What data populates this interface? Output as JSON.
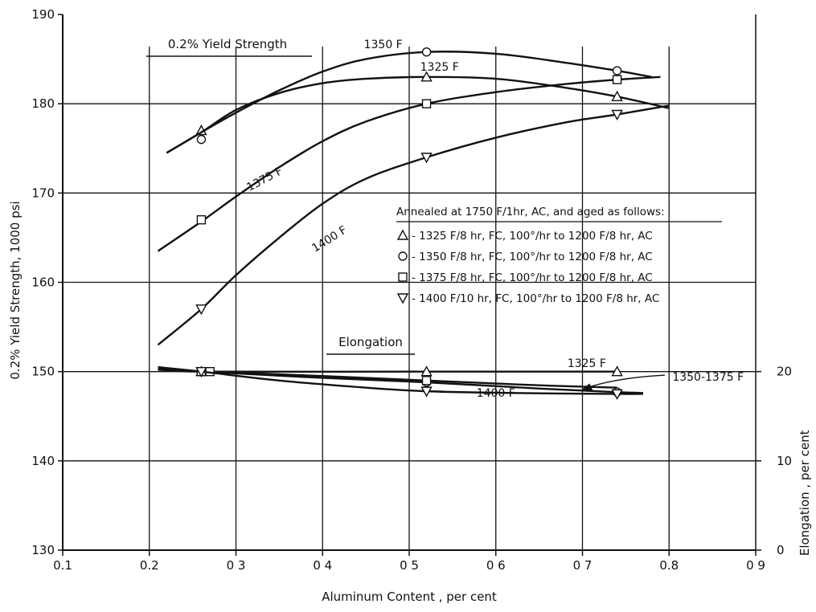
{
  "chart_data": {
    "type": "line",
    "xlabel": "Aluminum Content , per cent",
    "ylabel": "0.2% Yield Strength, 1000 psi",
    "y2label": "Elongation , per cent",
    "xlim": [
      0.1,
      0.9
    ],
    "ylim": [
      130,
      190
    ],
    "y2lim": [
      0,
      20
    ],
    "x_ticks": [
      0.1,
      0.2,
      0.3,
      0.4,
      0.5,
      0.6,
      0.7,
      0.8,
      0.9
    ],
    "x_tick_labels": [
      "0.1",
      "0.2",
      "0 3",
      "0 4",
      "0 5",
      "0 6",
      "0 7",
      "0.8",
      "0 9"
    ],
    "y_ticks": [
      130,
      140,
      150,
      160,
      170,
      180,
      190
    ],
    "y_tick_labels": [
      "130",
      "140",
      "150",
      "160",
      "170",
      "180",
      "190"
    ],
    "y2_ticks": [
      0,
      10,
      20
    ],
    "y2_tick_labels": [
      "0",
      "10",
      "20"
    ],
    "grid": true,
    "legend_placement": "middle-right",
    "colors": {
      "line": "#111111",
      "background": "#ffffff"
    },
    "sections": [
      {
        "id": "yield",
        "label": "0.2% Yield Strength"
      },
      {
        "id": "elong",
        "label": "Elongation"
      }
    ],
    "legend": {
      "title": "Annealed at 1750 F/1hr, AC, and aged as follows:",
      "entries": [
        {
          "marker": "triangle-up",
          "label": "- 1325 F/8 hr, FC, 100°/hr to 1200 F/8 hr, AC"
        },
        {
          "marker": "circle",
          "label": "- 1350 F/8 hr, FC, 100°/hr to 1200 F/8 hr, AC"
        },
        {
          "marker": "square",
          "label": "- 1375 F/8 hr, FC, 100°/hr to 1200 F/8 hr, AC"
        },
        {
          "marker": "triangle-down",
          "label": "- 1400 F/10 hr, FC, 100°/hr to 1200 F/8 hr, AC"
        }
      ]
    },
    "series": [
      {
        "name": "1325 F",
        "group": "yield",
        "marker": "triangle-up",
        "points": [
          [
            0.26,
            177.0
          ],
          [
            0.52,
            183.0
          ],
          [
            0.74,
            180.8
          ]
        ],
        "curve": [
          [
            0.22,
            174.5
          ],
          [
            0.26,
            176.8
          ],
          [
            0.3,
            179.3
          ],
          [
            0.35,
            181.2
          ],
          [
            0.4,
            182.3
          ],
          [
            0.45,
            182.8
          ],
          [
            0.52,
            183.0
          ],
          [
            0.6,
            182.8
          ],
          [
            0.68,
            181.8
          ],
          [
            0.74,
            180.8
          ],
          [
            0.8,
            179.5
          ]
        ]
      },
      {
        "name": "1350 F",
        "group": "yield",
        "marker": "circle",
        "points": [
          [
            0.26,
            176.0
          ],
          [
            0.52,
            185.8
          ],
          [
            0.74,
            183.7
          ]
        ],
        "curve": [
          [
            0.22,
            174.5
          ],
          [
            0.26,
            176.8
          ],
          [
            0.3,
            179.0
          ],
          [
            0.35,
            181.5
          ],
          [
            0.4,
            183.6
          ],
          [
            0.45,
            185.0
          ],
          [
            0.52,
            185.8
          ],
          [
            0.6,
            185.6
          ],
          [
            0.68,
            184.6
          ],
          [
            0.74,
            183.7
          ],
          [
            0.78,
            183.0
          ]
        ]
      },
      {
        "name": "1375 F",
        "group": "yield",
        "marker": "square",
        "points": [
          [
            0.26,
            167.0
          ],
          [
            0.52,
            180.0
          ],
          [
            0.74,
            182.7
          ]
        ],
        "curve": [
          [
            0.21,
            163.5
          ],
          [
            0.26,
            166.8
          ],
          [
            0.3,
            169.6
          ],
          [
            0.35,
            172.9
          ],
          [
            0.4,
            175.8
          ],
          [
            0.45,
            178.0
          ],
          [
            0.52,
            180.0
          ],
          [
            0.6,
            181.3
          ],
          [
            0.68,
            182.2
          ],
          [
            0.74,
            182.7
          ],
          [
            0.79,
            183.0
          ]
        ]
      },
      {
        "name": "1400 F",
        "group": "yield",
        "marker": "triangle-down",
        "points": [
          [
            0.26,
            157.0
          ],
          [
            0.52,
            174.0
          ],
          [
            0.74,
            178.8
          ]
        ],
        "curve": [
          [
            0.21,
            153.0
          ],
          [
            0.26,
            157.0
          ],
          [
            0.3,
            160.8
          ],
          [
            0.35,
            165.0
          ],
          [
            0.4,
            168.8
          ],
          [
            0.45,
            171.6
          ],
          [
            0.52,
            174.0
          ],
          [
            0.6,
            176.2
          ],
          [
            0.68,
            177.9
          ],
          [
            0.74,
            178.8
          ],
          [
            0.8,
            179.8
          ]
        ]
      },
      {
        "name": "1325 F",
        "group": "elong",
        "marker": "triangle-up",
        "points": [
          [
            0.26,
            20.0
          ],
          [
            0.52,
            20.0
          ],
          [
            0.74,
            20.0
          ]
        ],
        "curve": [
          [
            0.21,
            20.3
          ],
          [
            0.26,
            20.0
          ],
          [
            0.52,
            20.0
          ],
          [
            0.74,
            20.0
          ]
        ]
      },
      {
        "name": "1350",
        "group": "elong",
        "marker": "circle",
        "points": [
          [
            0.26,
            20.0
          ],
          [
            0.52,
            18.8
          ],
          [
            0.74,
            17.7
          ]
        ],
        "curve": [
          [
            0.21,
            20.3
          ],
          [
            0.26,
            20.0
          ],
          [
            0.4,
            19.3
          ],
          [
            0.52,
            18.8
          ],
          [
            0.65,
            18.1
          ],
          [
            0.74,
            17.7
          ],
          [
            0.77,
            17.6
          ]
        ]
      },
      {
        "name": "1375",
        "group": "elong",
        "marker": "square",
        "points": [
          [
            0.26,
            20.0
          ],
          [
            0.27,
            20.0
          ],
          [
            0.52,
            19.0
          ]
        ],
        "curve": [
          [
            0.21,
            20.2
          ],
          [
            0.27,
            20.0
          ],
          [
            0.4,
            19.5
          ],
          [
            0.52,
            19.0
          ],
          [
            0.64,
            18.5
          ],
          [
            0.74,
            18.2
          ]
        ]
      },
      {
        "name": "1400 F",
        "group": "elong",
        "marker": "triangle-down",
        "points": [
          [
            0.26,
            20.0
          ],
          [
            0.52,
            17.8
          ],
          [
            0.74,
            17.5
          ]
        ],
        "curve": [
          [
            0.21,
            20.5
          ],
          [
            0.26,
            20.0
          ],
          [
            0.35,
            19.0
          ],
          [
            0.45,
            18.2
          ],
          [
            0.52,
            17.8
          ],
          [
            0.62,
            17.6
          ],
          [
            0.74,
            17.5
          ],
          [
            0.77,
            17.5
          ]
        ]
      }
    ],
    "annotations": [
      {
        "text": "1350 F",
        "at": [
          0.47,
          186.2
        ]
      },
      {
        "text": "1325 F",
        "at": [
          0.535,
          183.7
        ]
      },
      {
        "text": "1375 F",
        "at": [
          0.335,
          171.2
        ],
        "rotate": -28
      },
      {
        "text": "1400 F",
        "at": [
          0.41,
          164.5
        ],
        "rotate": -32
      },
      {
        "text": "1325 F",
        "at": [
          0.705,
          20.5
        ]
      },
      {
        "text": "1350-1375 F",
        "at": [
          0.845,
          19.0
        ]
      },
      {
        "text": "1400 F",
        "at": [
          0.6,
          17.2
        ]
      }
    ]
  }
}
